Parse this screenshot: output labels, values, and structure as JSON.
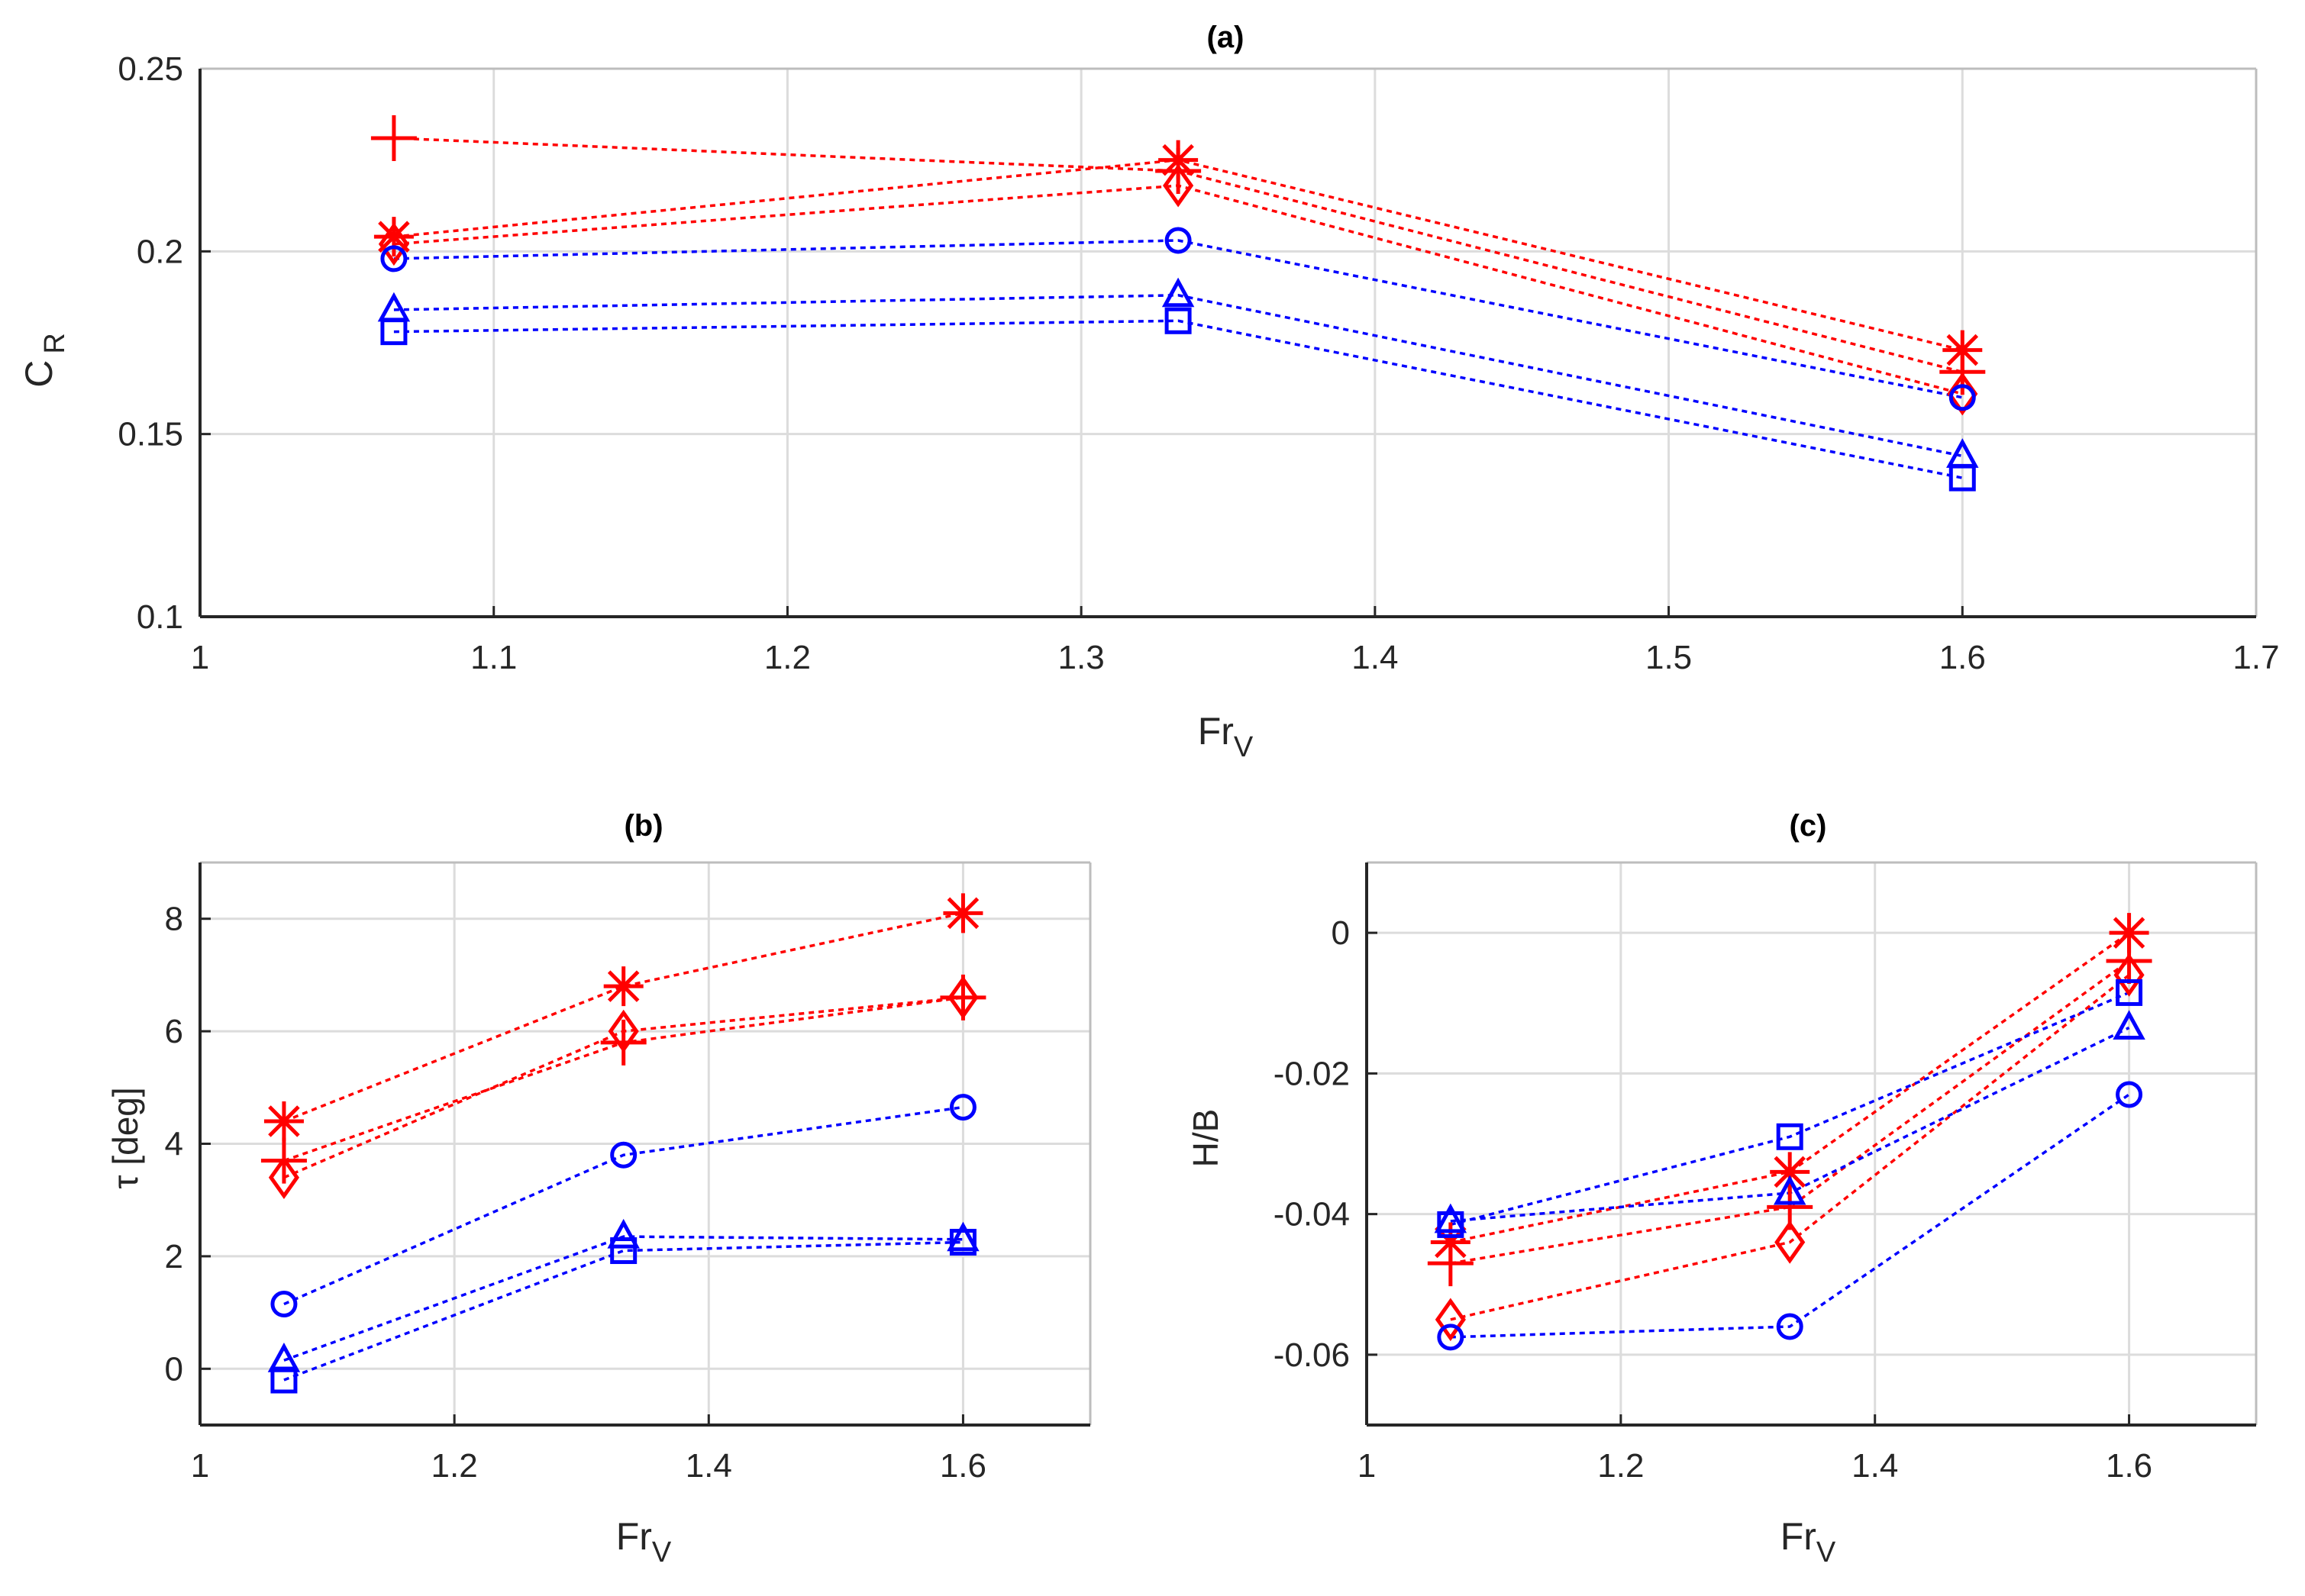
{
  "colors": {
    "red_series": "#ff0000",
    "blue_series": "#0000ff",
    "grid": "#dcdcdc",
    "axis": "#262626",
    "background": "#ffffff"
  },
  "chart_data": [
    {
      "type": "line",
      "title": "(a)",
      "xlabel": {
        "main": "Fr",
        "sub": "V"
      },
      "ylabel": {
        "main": "C",
        "sub": "R"
      },
      "xlim": [
        1.0,
        1.7
      ],
      "ylim": [
        0.1,
        0.25
      ],
      "xticks": [
        "1",
        "1.1",
        "1.2",
        "1.3",
        "1.4",
        "1.5",
        "1.6",
        "1.7"
      ],
      "yticks": [
        "0.1",
        "0.15",
        "0.2",
        "0.25"
      ],
      "grid": true,
      "x": [
        1.066,
        1.333,
        1.6
      ],
      "series": [
        {
          "color": "red",
          "marker": "plus",
          "values": [
            0.231,
            0.222,
            0.167
          ]
        },
        {
          "color": "red",
          "marker": "star",
          "values": [
            0.204,
            0.225,
            0.173
          ]
        },
        {
          "color": "red",
          "marker": "diamond",
          "values": [
            0.202,
            0.218,
            0.161
          ]
        },
        {
          "color": "blue",
          "marker": "circle",
          "values": [
            0.198,
            0.203,
            0.16
          ]
        },
        {
          "color": "blue",
          "marker": "triangle",
          "values": [
            0.184,
            0.188,
            0.144
          ]
        },
        {
          "color": "blue",
          "marker": "square",
          "values": [
            0.178,
            0.181,
            0.138
          ]
        }
      ]
    },
    {
      "type": "line",
      "title": "(b)",
      "xlabel": {
        "main": "Fr",
        "sub": "V"
      },
      "ylabel": {
        "main": "τ [deg]",
        "sub": ""
      },
      "xlim": [
        1.0,
        1.7
      ],
      "ylim": [
        -1.0,
        9.0
      ],
      "xticks": [
        "1",
        "1.2",
        "1.4",
        "1.6"
      ],
      "yticks": [
        "0",
        "2",
        "4",
        "6",
        "8"
      ],
      "grid": true,
      "x": [
        1.066,
        1.333,
        1.6
      ],
      "series": [
        {
          "color": "red",
          "marker": "plus",
          "values": [
            3.7,
            5.8,
            6.6
          ]
        },
        {
          "color": "red",
          "marker": "star",
          "values": [
            4.4,
            6.8,
            8.1
          ]
        },
        {
          "color": "red",
          "marker": "diamond",
          "values": [
            3.4,
            6.0,
            6.6
          ]
        },
        {
          "color": "blue",
          "marker": "circle",
          "values": [
            1.15,
            3.8,
            4.65
          ]
        },
        {
          "color": "blue",
          "marker": "triangle",
          "values": [
            0.15,
            2.35,
            2.3
          ]
        },
        {
          "color": "blue",
          "marker": "square",
          "values": [
            -0.2,
            2.1,
            2.25
          ]
        }
      ]
    },
    {
      "type": "line",
      "title": "(c)",
      "xlabel": {
        "main": "Fr",
        "sub": "V"
      },
      "ylabel": {
        "main": "H/B",
        "sub": ""
      },
      "xlim": [
        1.0,
        1.7
      ],
      "ylim": [
        -0.07,
        0.01
      ],
      "xticks": [
        "1",
        "1.2",
        "1.4",
        "1.6"
      ],
      "yticks": [
        "0",
        "-0.02",
        "-0.04",
        "-0.06"
      ],
      "grid": true,
      "x": [
        1.066,
        1.333,
        1.6
      ],
      "series": [
        {
          "color": "red",
          "marker": "plus",
          "values": [
            -0.047,
            -0.039,
            -0.004
          ]
        },
        {
          "color": "red",
          "marker": "star",
          "values": [
            -0.044,
            -0.034,
            0.0
          ]
        },
        {
          "color": "red",
          "marker": "diamond",
          "values": [
            -0.055,
            -0.044,
            -0.006
          ]
        },
        {
          "color": "blue",
          "marker": "circle",
          "values": [
            -0.0575,
            -0.056,
            -0.023
          ]
        },
        {
          "color": "blue",
          "marker": "triangle",
          "values": [
            -0.041,
            -0.037,
            -0.0135
          ]
        },
        {
          "color": "blue",
          "marker": "square",
          "values": [
            -0.0415,
            -0.029,
            -0.0085
          ]
        }
      ]
    }
  ]
}
